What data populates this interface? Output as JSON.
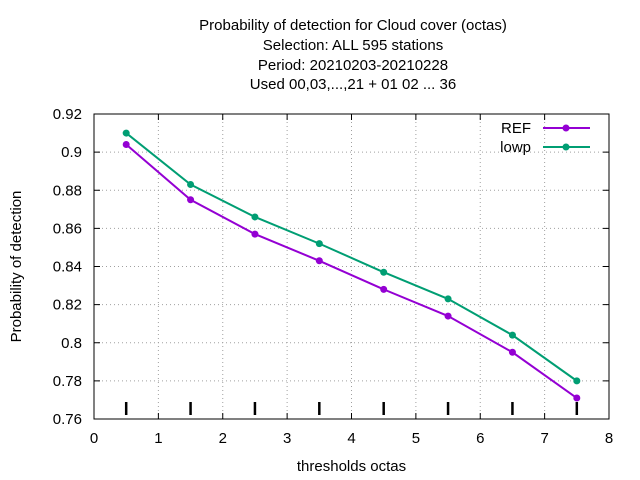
{
  "chart_data": {
    "type": "line",
    "title": [
      "Probability of detection  for Cloud cover (octas)",
      "Selection: ALL    595 stations",
      "Period: 20210203-20210228",
      "Used  00,03,...,21  + 01 02 ... 36"
    ],
    "xlabel": "thresholds octas",
    "ylabel": "Probability of detection",
    "xlim": [
      0,
      8
    ],
    "ylim": [
      0.76,
      0.92
    ],
    "xticks": [
      "0",
      "1",
      "2",
      "3",
      "4",
      "5",
      "6",
      "7",
      "8"
    ],
    "yticks": [
      "0.76",
      "0.78",
      "0.8",
      "0.82",
      "0.84",
      "0.86",
      "0.88",
      "0.9",
      "0.92"
    ],
    "grid": true,
    "legend_position": "top-right",
    "x": [
      0.5,
      1.5,
      2.5,
      3.5,
      4.5,
      5.5,
      6.5,
      7.5
    ],
    "series": [
      {
        "name": "REF",
        "color": "#9400d3",
        "values": [
          0.904,
          0.875,
          0.857,
          0.843,
          0.828,
          0.814,
          0.795,
          0.771
        ]
      },
      {
        "name": "lowp",
        "color": "#009e73",
        "values": [
          0.91,
          0.883,
          0.866,
          0.852,
          0.837,
          0.823,
          0.804,
          0.78
        ]
      }
    ],
    "rug_x": [
      0.5,
      1.5,
      2.5,
      3.5,
      4.5,
      5.5,
      6.5,
      7.5
    ]
  }
}
